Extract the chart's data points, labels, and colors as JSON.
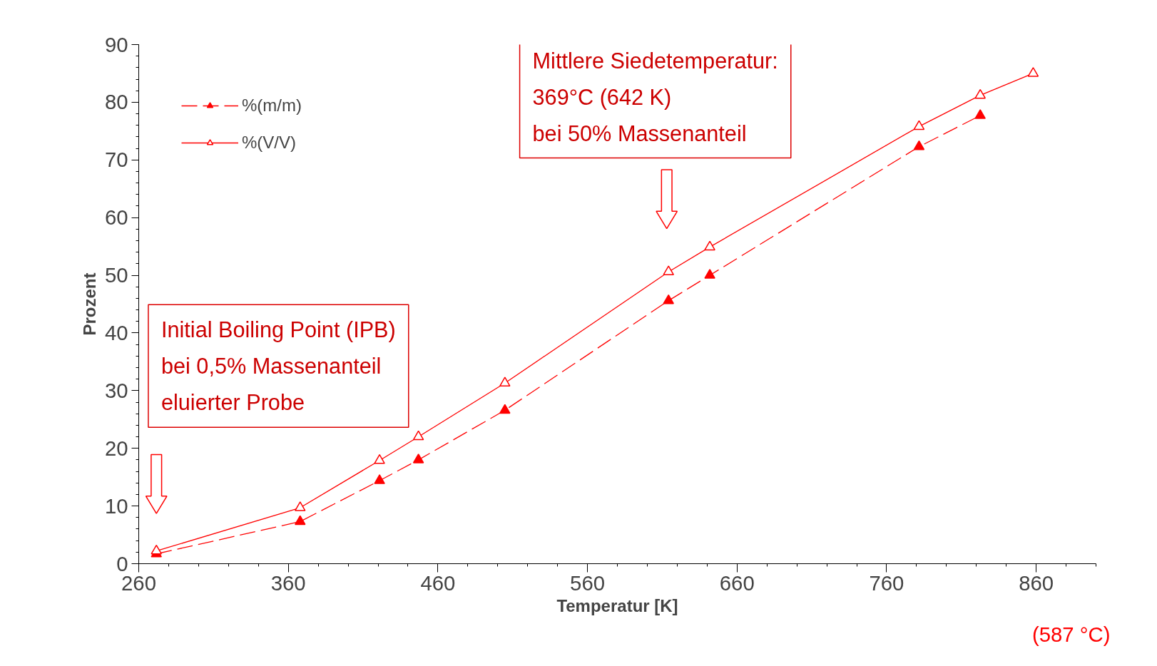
{
  "chart_data": {
    "type": "line",
    "xlabel": "Temperatur [K]",
    "ylabel": "Prozent",
    "xlim": [
      260,
      900
    ],
    "xticks": [
      260,
      360,
      460,
      560,
      660,
      760,
      860
    ],
    "ylim": [
      0,
      90
    ],
    "yticks": [
      0,
      10,
      20,
      30,
      40,
      50,
      60,
      70,
      80,
      90
    ],
    "grid": false,
    "legend": "top left",
    "marker": "triangle",
    "series": [
      {
        "name": "%(m/m)",
        "color": "#ff0000",
        "line_style": "dashed",
        "x": [
          271.8,
          367.9,
          421,
          447,
          504.8,
          614.2,
          641.8,
          781.7,
          822.6
        ],
        "values": [
          1.7,
          7.3,
          14.4,
          18.0,
          26.6,
          45.6,
          50.0,
          72.3,
          77.7
        ]
      },
      {
        "name": "%(V/V)",
        "color": "#ff0000",
        "line_style": "solid",
        "x": [
          271.8,
          367.9,
          421,
          447,
          504.8,
          614.2,
          641.8,
          781.7,
          822.6,
          858
        ],
        "values": [
          2.2,
          9.7,
          17.9,
          22.0,
          31.3,
          50.6,
          54.9,
          75.8,
          81.2,
          85.0
        ]
      }
    ],
    "annotations": [
      "Mittlere Siedetemperatur:\n 369°C (642 K)\nbei 50% Massenanteil",
      "Initial Boiling Point (IPB)\nbei 0,5% Massenanteil\neluierter Probe",
      "(587 °C)"
    ]
  }
}
